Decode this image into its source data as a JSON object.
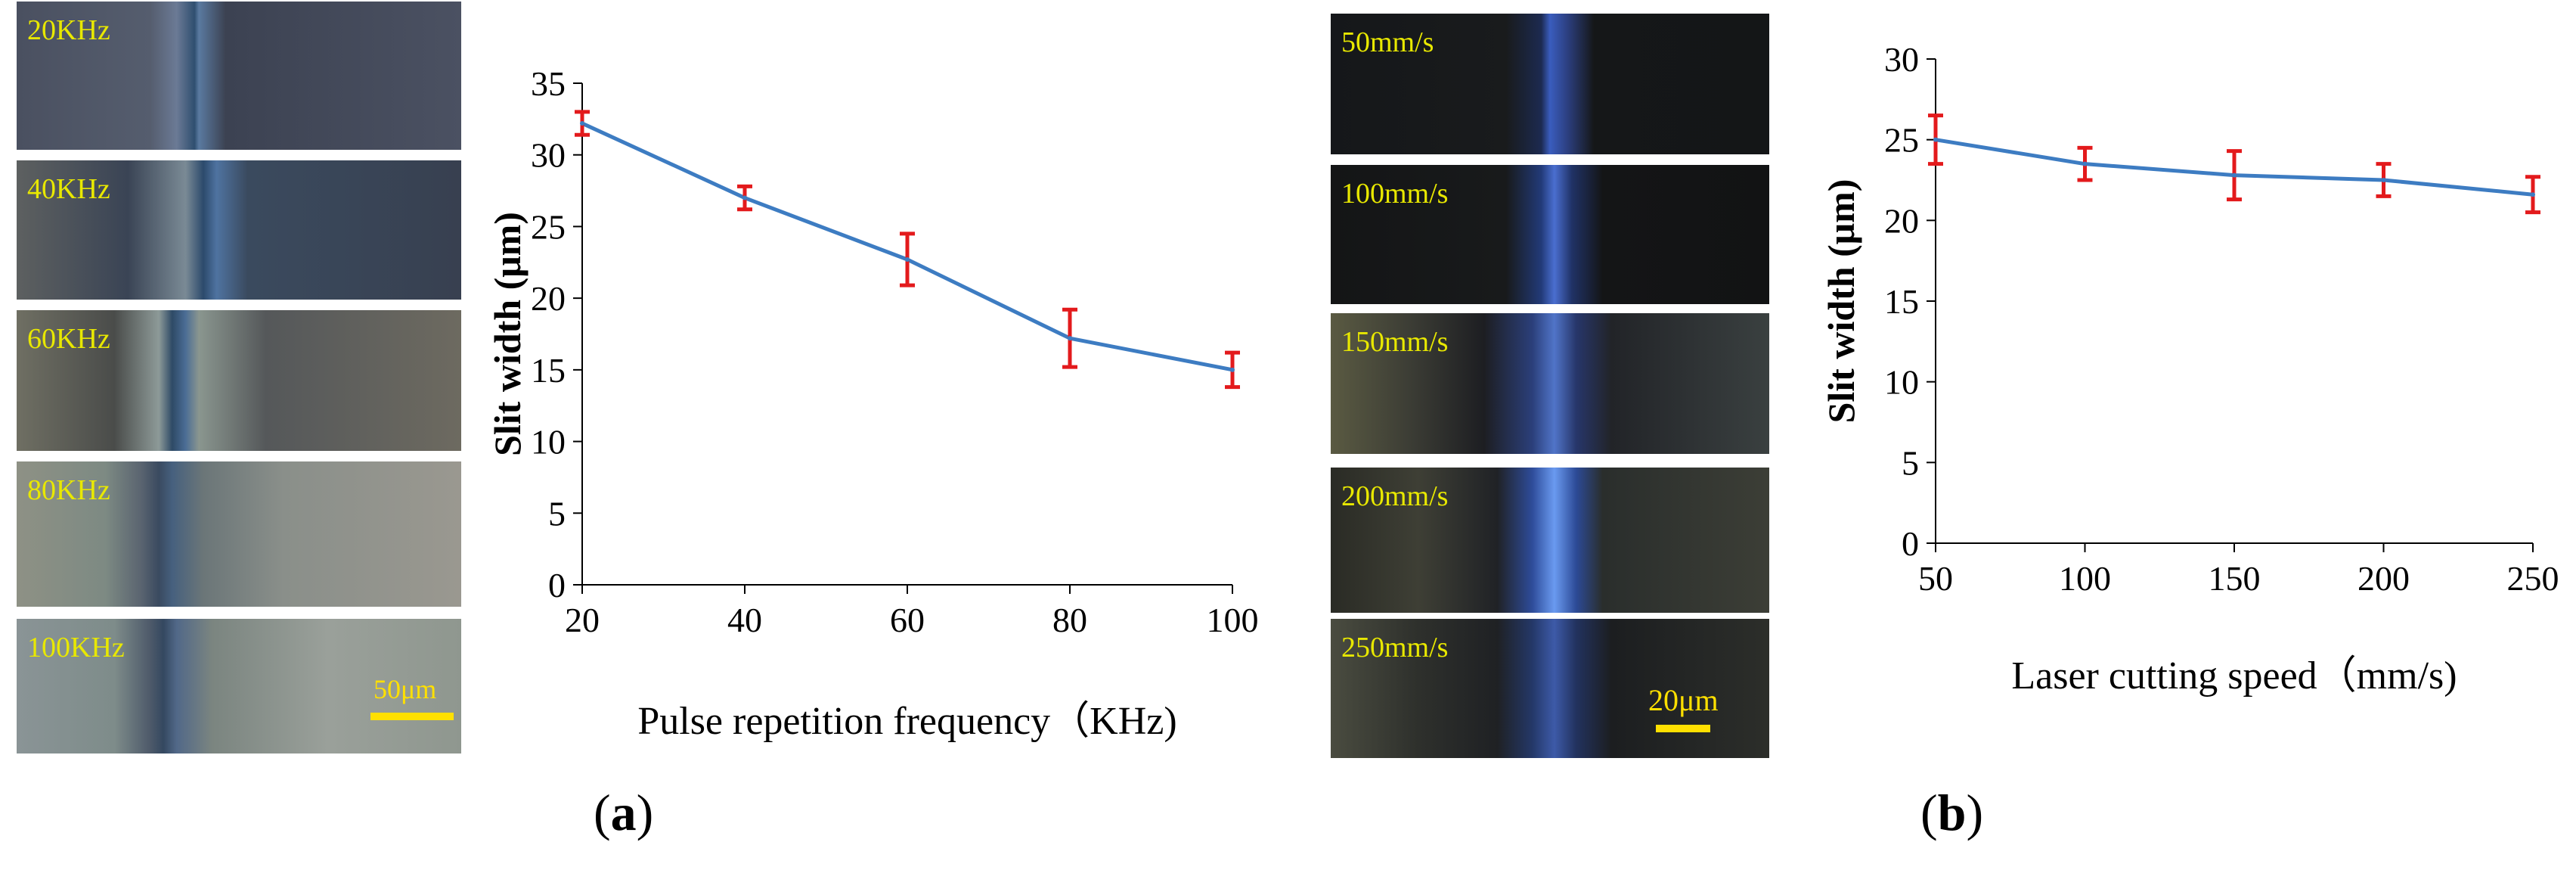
{
  "panel_a": {
    "label_open": "(",
    "label_letter": "a",
    "label_close": ")",
    "strip_labels": [
      "20KHz",
      "40KHz",
      "60KHz",
      "80KHz",
      "100KHz"
    ],
    "scale_bar_label": "50μm"
  },
  "panel_b": {
    "label_open": "(",
    "label_letter": "b",
    "label_close": ")",
    "strip_labels": [
      "50mm/s",
      "100mm/s",
      "150mm/s",
      "200mm/s",
      "250mm/s"
    ],
    "scale_bar_label": "20μm"
  },
  "colors": {
    "line": "#3d7cc2",
    "error_bar": "#e31a1c",
    "strip_label": "#e8e800"
  },
  "chart_data": [
    {
      "type": "line",
      "title": "",
      "xlabel": "Pulse repetition frequency（KHz)",
      "ylabel": "Slit width (μm)",
      "x": [
        20,
        40,
        60,
        80,
        100
      ],
      "y": [
        32.2,
        27.0,
        22.7,
        17.2,
        15.0
      ],
      "error": [
        0.8,
        0.8,
        1.8,
        2.0,
        1.2
      ],
      "xlim": [
        20,
        100
      ],
      "ylim": [
        0,
        35
      ],
      "xticks": [
        "20",
        "40",
        "60",
        "80",
        "100"
      ],
      "yticks": [
        "0",
        "5",
        "10",
        "15",
        "20",
        "25",
        "30",
        "35"
      ],
      "grid": false,
      "legend": "none"
    },
    {
      "type": "line",
      "title": "",
      "xlabel": "Laser cutting speed（mm/s)",
      "ylabel": "Slit width (μm)",
      "x": [
        50,
        100,
        150,
        200,
        250
      ],
      "y": [
        25.0,
        23.5,
        22.8,
        22.5,
        21.6
      ],
      "error": [
        1.5,
        1.0,
        1.5,
        1.0,
        1.1
      ],
      "xlim": [
        50,
        250
      ],
      "ylim": [
        0,
        30
      ],
      "xticks": [
        "50",
        "100",
        "150",
        "200",
        "250"
      ],
      "yticks": [
        "0",
        "5",
        "10",
        "15",
        "20",
        "25",
        "30"
      ],
      "grid": false,
      "legend": "none"
    }
  ]
}
